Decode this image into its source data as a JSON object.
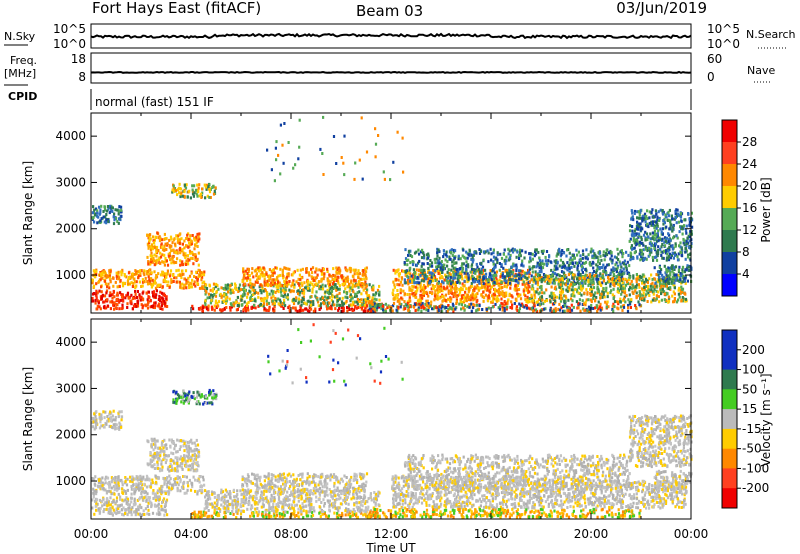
{
  "header": {
    "station": "Fort Hays East (fitACF)",
    "beam": "Beam 03",
    "date": "03/Jun/2019"
  },
  "top_panels": {
    "nsky_label": "N.Sky",
    "nsky_ticks": [
      "10^5",
      "10^0"
    ],
    "nsearch_label": "N.Search",
    "nsearch_ticks": [
      "10^5",
      "10^0"
    ],
    "freq_label_1": "Freq.",
    "freq_label_2": "[MHz]",
    "freq_ticks": [
      "18",
      "8"
    ],
    "nave_label": "Nave",
    "nave_ticks": [
      "60",
      "0"
    ],
    "cpid_label": "CPID",
    "mode_text": "normal (fast) 151 IF"
  },
  "chart_data": [
    {
      "type": "heatmap",
      "ylabel": "Slant Range [km]",
      "xlabel": "Time UT",
      "x_ticks": [
        "00:00",
        "04:00",
        "08:00",
        "12:00",
        "16:00",
        "20:00",
        "00:00"
      ],
      "y_ticks": [
        "1000",
        "2000",
        "3000",
        "4000"
      ],
      "ylim": [
        180,
        4500
      ],
      "xlim_hours": [
        0,
        24
      ],
      "colorbar": {
        "label": "Power [dB]",
        "ticks": [
          "28",
          "24",
          "20",
          "16",
          "12",
          "8",
          "4"
        ],
        "colors": [
          "#f00000",
          "#ff4020",
          "#ff8800",
          "#ffcc00",
          "#55aa55",
          "#2f7a4f",
          "#1040a0",
          "#0000ff"
        ]
      }
    },
    {
      "type": "heatmap",
      "ylabel": "Slant Range [km]",
      "xlabel": "Time UT",
      "x_ticks": [
        "00:00",
        "04:00",
        "08:00",
        "12:00",
        "16:00",
        "20:00",
        "00:00"
      ],
      "y_ticks": [
        "1000",
        "2000",
        "3000",
        "4000"
      ],
      "ylim": [
        180,
        4500
      ],
      "xlim_hours": [
        0,
        24
      ],
      "colorbar": {
        "label": "Velocity [m s⁻¹]",
        "ticks": [
          "200",
          "100",
          "50",
          "15",
          "-15",
          "-50",
          "-100",
          "-200"
        ],
        "colors": [
          "#1030c0",
          "#2f7a4f",
          "#44cc22",
          "#bbbbbb",
          "#ffcc00",
          "#ff8800",
          "#ff4020",
          "#f00000"
        ]
      }
    }
  ]
}
